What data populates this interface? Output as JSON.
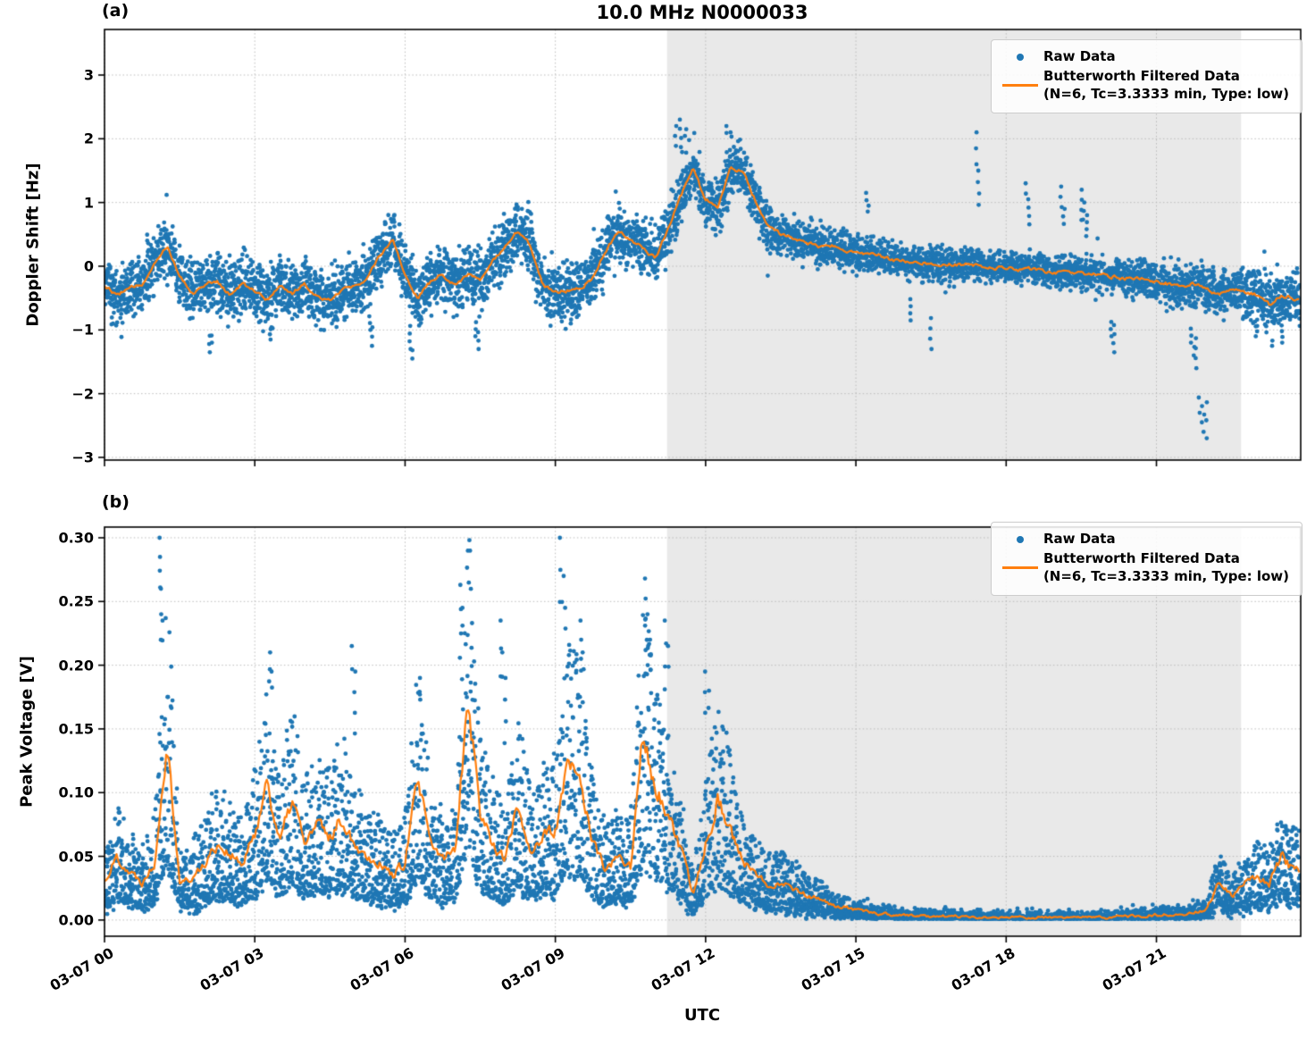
{
  "figure": {
    "title": "10.0 MHz N0000033",
    "panel_a_tag": "(a)",
    "panel_b_tag": "(b)",
    "xlabel": "UTC"
  },
  "legend": {
    "raw_label": "Raw Data",
    "filtered_label": "Butterworth Filtered Data",
    "filtered_sublabel": "(N=6, Tc=3.3333 min, Type: low)"
  },
  "colors": {
    "raw": "#1f77b4",
    "filtered": "#ff7f0e",
    "shading": "#e9e9e9",
    "grid": "#bbbbbb",
    "frame": "#000000"
  },
  "chart_data": [
    {
      "type": "scatter+line",
      "panel": "a",
      "ylabel": "Doppler Shift [Hz]",
      "ylim": [
        -3.042,
        3.715
      ],
      "yticks": {
        "values": [
          3,
          2,
          1,
          0,
          -1,
          -2,
          -3
        ],
        "labels": [
          "3",
          "2",
          "1",
          "0",
          "−1",
          "−2",
          "−3"
        ]
      },
      "xlim_hours": [
        0,
        23.88
      ],
      "xticks": {
        "hours": [
          0,
          3,
          6,
          9,
          12,
          15,
          18,
          21
        ],
        "labels": [
          "03-07 00",
          "03-07 03",
          "03-07 06",
          "03-07 09",
          "03-07 12",
          "03-07 15",
          "03-07 18",
          "03-07 21"
        ]
      },
      "shaded_region_hours": [
        11.23,
        22.69
      ],
      "series": [
        {
          "name": "Raw Data",
          "type": "scatter",
          "marker": "dot",
          "n_points": 6500,
          "seed": 11,
          "spread_keypoints": [
            [
              0,
              0.22
            ],
            [
              12.75,
              0.22
            ],
            [
              13.5,
              0.16
            ],
            [
              16,
              0.12
            ],
            [
              20,
              0.13
            ],
            [
              22,
              0.17
            ],
            [
              23.9,
              0.2
            ]
          ],
          "outliers": [
            [
              2.1,
              -1.35
            ],
            [
              2.15,
              -1.2
            ],
            [
              3.3,
              -1.15
            ],
            [
              5.3,
              -1.0
            ],
            [
              5.35,
              -1.25
            ],
            [
              6.1,
              -1.3
            ],
            [
              6.15,
              -1.45
            ],
            [
              7.4,
              -1.1
            ],
            [
              7.45,
              -1.3
            ],
            [
              9.3,
              -0.9
            ],
            [
              11.4,
              2.2
            ],
            [
              11.5,
              2.3
            ],
            [
              11.6,
              2.15
            ],
            [
              12.4,
              2.2
            ],
            [
              12.5,
              2.1
            ],
            [
              15.2,
              1.15
            ],
            [
              15.25,
              0.95
            ],
            [
              16.1,
              -0.85
            ],
            [
              16.5,
              -1.3
            ],
            [
              17.4,
              2.1
            ],
            [
              17.45,
              1.5
            ],
            [
              18.4,
              1.3
            ],
            [
              18.45,
              1.05
            ],
            [
              19.1,
              1.25
            ],
            [
              19.15,
              0.9
            ],
            [
              19.5,
              1.2
            ],
            [
              19.55,
              1.0
            ],
            [
              19.6,
              0.8
            ],
            [
              20.1,
              -1.1
            ],
            [
              20.15,
              -1.35
            ],
            [
              21.7,
              -1.2
            ],
            [
              21.75,
              -1.4
            ],
            [
              21.8,
              -1.6
            ],
            [
              21.85,
              -2.3
            ],
            [
              21.9,
              -2.45
            ],
            [
              21.95,
              -2.6
            ],
            [
              22.0,
              -2.7
            ],
            [
              23.0,
              -1.1
            ],
            [
              23.3,
              -1.25
            ],
            [
              23.5,
              -1.2
            ]
          ]
        },
        {
          "name": "Butterworth Filtered Data",
          "type": "line",
          "seed": 12,
          "dt_hours": 0.25,
          "jitter_abs": 0.05,
          "jitter_rel": 0,
          "values": [
            -0.3,
            -0.45,
            -0.35,
            -0.28,
            0.05,
            0.33,
            -0.15,
            -0.42,
            -0.28,
            -0.25,
            -0.45,
            -0.28,
            -0.38,
            -0.52,
            -0.3,
            -0.42,
            -0.28,
            -0.48,
            -0.52,
            -0.35,
            -0.32,
            -0.18,
            0.18,
            0.42,
            -0.15,
            -0.5,
            -0.25,
            -0.12,
            -0.3,
            -0.12,
            -0.22,
            0.08,
            0.28,
            0.55,
            0.35,
            -0.3,
            -0.4,
            -0.38,
            -0.35,
            -0.18,
            0.22,
            0.55,
            0.42,
            0.28,
            0.12,
            0.6,
            1.1,
            1.52,
            1.05,
            0.92,
            1.55,
            1.48,
            1.02,
            0.62,
            0.5,
            0.44,
            0.38,
            0.3,
            0.33,
            0.26,
            0.22,
            0.18,
            0.15,
            0.1,
            0.08,
            0.06,
            0.05,
            0.03,
            0.02,
            0.04,
            0.0,
            -0.02,
            -0.03,
            -0.05,
            -0.04,
            -0.08,
            -0.1,
            -0.08,
            -0.12,
            -0.1,
            -0.15,
            -0.18,
            -0.2,
            -0.18,
            -0.25,
            -0.28,
            -0.3,
            -0.28,
            -0.35,
            -0.45,
            -0.38,
            -0.4,
            -0.45,
            -0.6,
            -0.45,
            -0.52,
            -0.55
          ]
        }
      ]
    },
    {
      "type": "scatter+line",
      "panel": "b",
      "ylabel": "Peak Voltage [V]",
      "ylim": [
        -0.0127,
        0.3084
      ],
      "yticks": {
        "values": [
          0.3,
          0.25,
          0.2,
          0.15,
          0.1,
          0.05,
          0.0
        ],
        "labels": [
          "0.30",
          "0.25",
          "0.20",
          "0.15",
          "0.10",
          "0.05",
          "0.00"
        ]
      },
      "xlim_hours": [
        0,
        23.88
      ],
      "xticks": {
        "hours": [
          0,
          3,
          6,
          9,
          12,
          15,
          18,
          21
        ],
        "labels": [
          "03-07 00",
          "03-07 03",
          "03-07 06",
          "03-07 09",
          "03-07 12",
          "03-07 15",
          "03-07 18",
          "03-07 21"
        ]
      },
      "shaded_region_hours": [
        11.23,
        22.69
      ],
      "series": [
        {
          "name": "Raw Data",
          "type": "scatter",
          "marker": "dot",
          "n_points": 6500,
          "seed": 21,
          "outliers": [
            [
              1.1,
              0.3
            ],
            [
              1.1,
              0.285
            ],
            [
              1.12,
              0.26
            ],
            [
              1.15,
              0.235
            ],
            [
              3.3,
              0.21
            ],
            [
              3.35,
              0.195
            ],
            [
              4.95,
              0.215
            ],
            [
              5.0,
              0.195
            ],
            [
              6.3,
              0.19
            ],
            [
              7.1,
              0.263
            ],
            [
              7.15,
              0.245
            ],
            [
              7.2,
              0.225
            ],
            [
              7.9,
              0.235
            ],
            [
              7.95,
              0.21
            ],
            [
              8.0,
              0.19
            ],
            [
              9.1,
              0.3
            ],
            [
              9.15,
              0.27
            ],
            [
              9.2,
              0.245
            ],
            [
              9.5,
              0.235
            ],
            [
              9.55,
              0.21
            ],
            [
              10.8,
              0.268
            ],
            [
              10.85,
              0.24
            ],
            [
              10.9,
              0.22
            ],
            [
              11.2,
              0.235
            ],
            [
              11.25,
              0.215
            ],
            [
              12.0,
              0.195
            ],
            [
              12.05,
              0.18
            ],
            [
              23.4,
              0.075
            ],
            [
              23.6,
              0.07
            ]
          ]
        },
        {
          "name": "Butterworth Filtered Data",
          "type": "line",
          "seed": 22,
          "dt_hours": 0.25,
          "jitter_abs": 0.0015,
          "jitter_rel": 0.12,
          "values": [
            0.03,
            0.05,
            0.038,
            0.03,
            0.045,
            0.145,
            0.03,
            0.032,
            0.045,
            0.06,
            0.052,
            0.042,
            0.068,
            0.11,
            0.06,
            0.095,
            0.06,
            0.075,
            0.065,
            0.08,
            0.06,
            0.05,
            0.045,
            0.035,
            0.045,
            0.11,
            0.06,
            0.048,
            0.055,
            0.178,
            0.085,
            0.06,
            0.048,
            0.09,
            0.055,
            0.065,
            0.07,
            0.12,
            0.11,
            0.06,
            0.04,
            0.048,
            0.042,
            0.145,
            0.105,
            0.08,
            0.055,
            0.02,
            0.06,
            0.095,
            0.07,
            0.045,
            0.035,
            0.028,
            0.03,
            0.025,
            0.02,
            0.016,
            0.012,
            0.01,
            0.008,
            0.006,
            0.005,
            0.004,
            0.004,
            0.003,
            0.003,
            0.003,
            0.003,
            0.002,
            0.002,
            0.002,
            0.002,
            0.002,
            0.002,
            0.002,
            0.002,
            0.002,
            0.002,
            0.002,
            0.002,
            0.003,
            0.003,
            0.003,
            0.004,
            0.004,
            0.005,
            0.006,
            0.008,
            0.03,
            0.018,
            0.028,
            0.033,
            0.028,
            0.05,
            0.038,
            0.042
          ]
        }
      ]
    }
  ]
}
